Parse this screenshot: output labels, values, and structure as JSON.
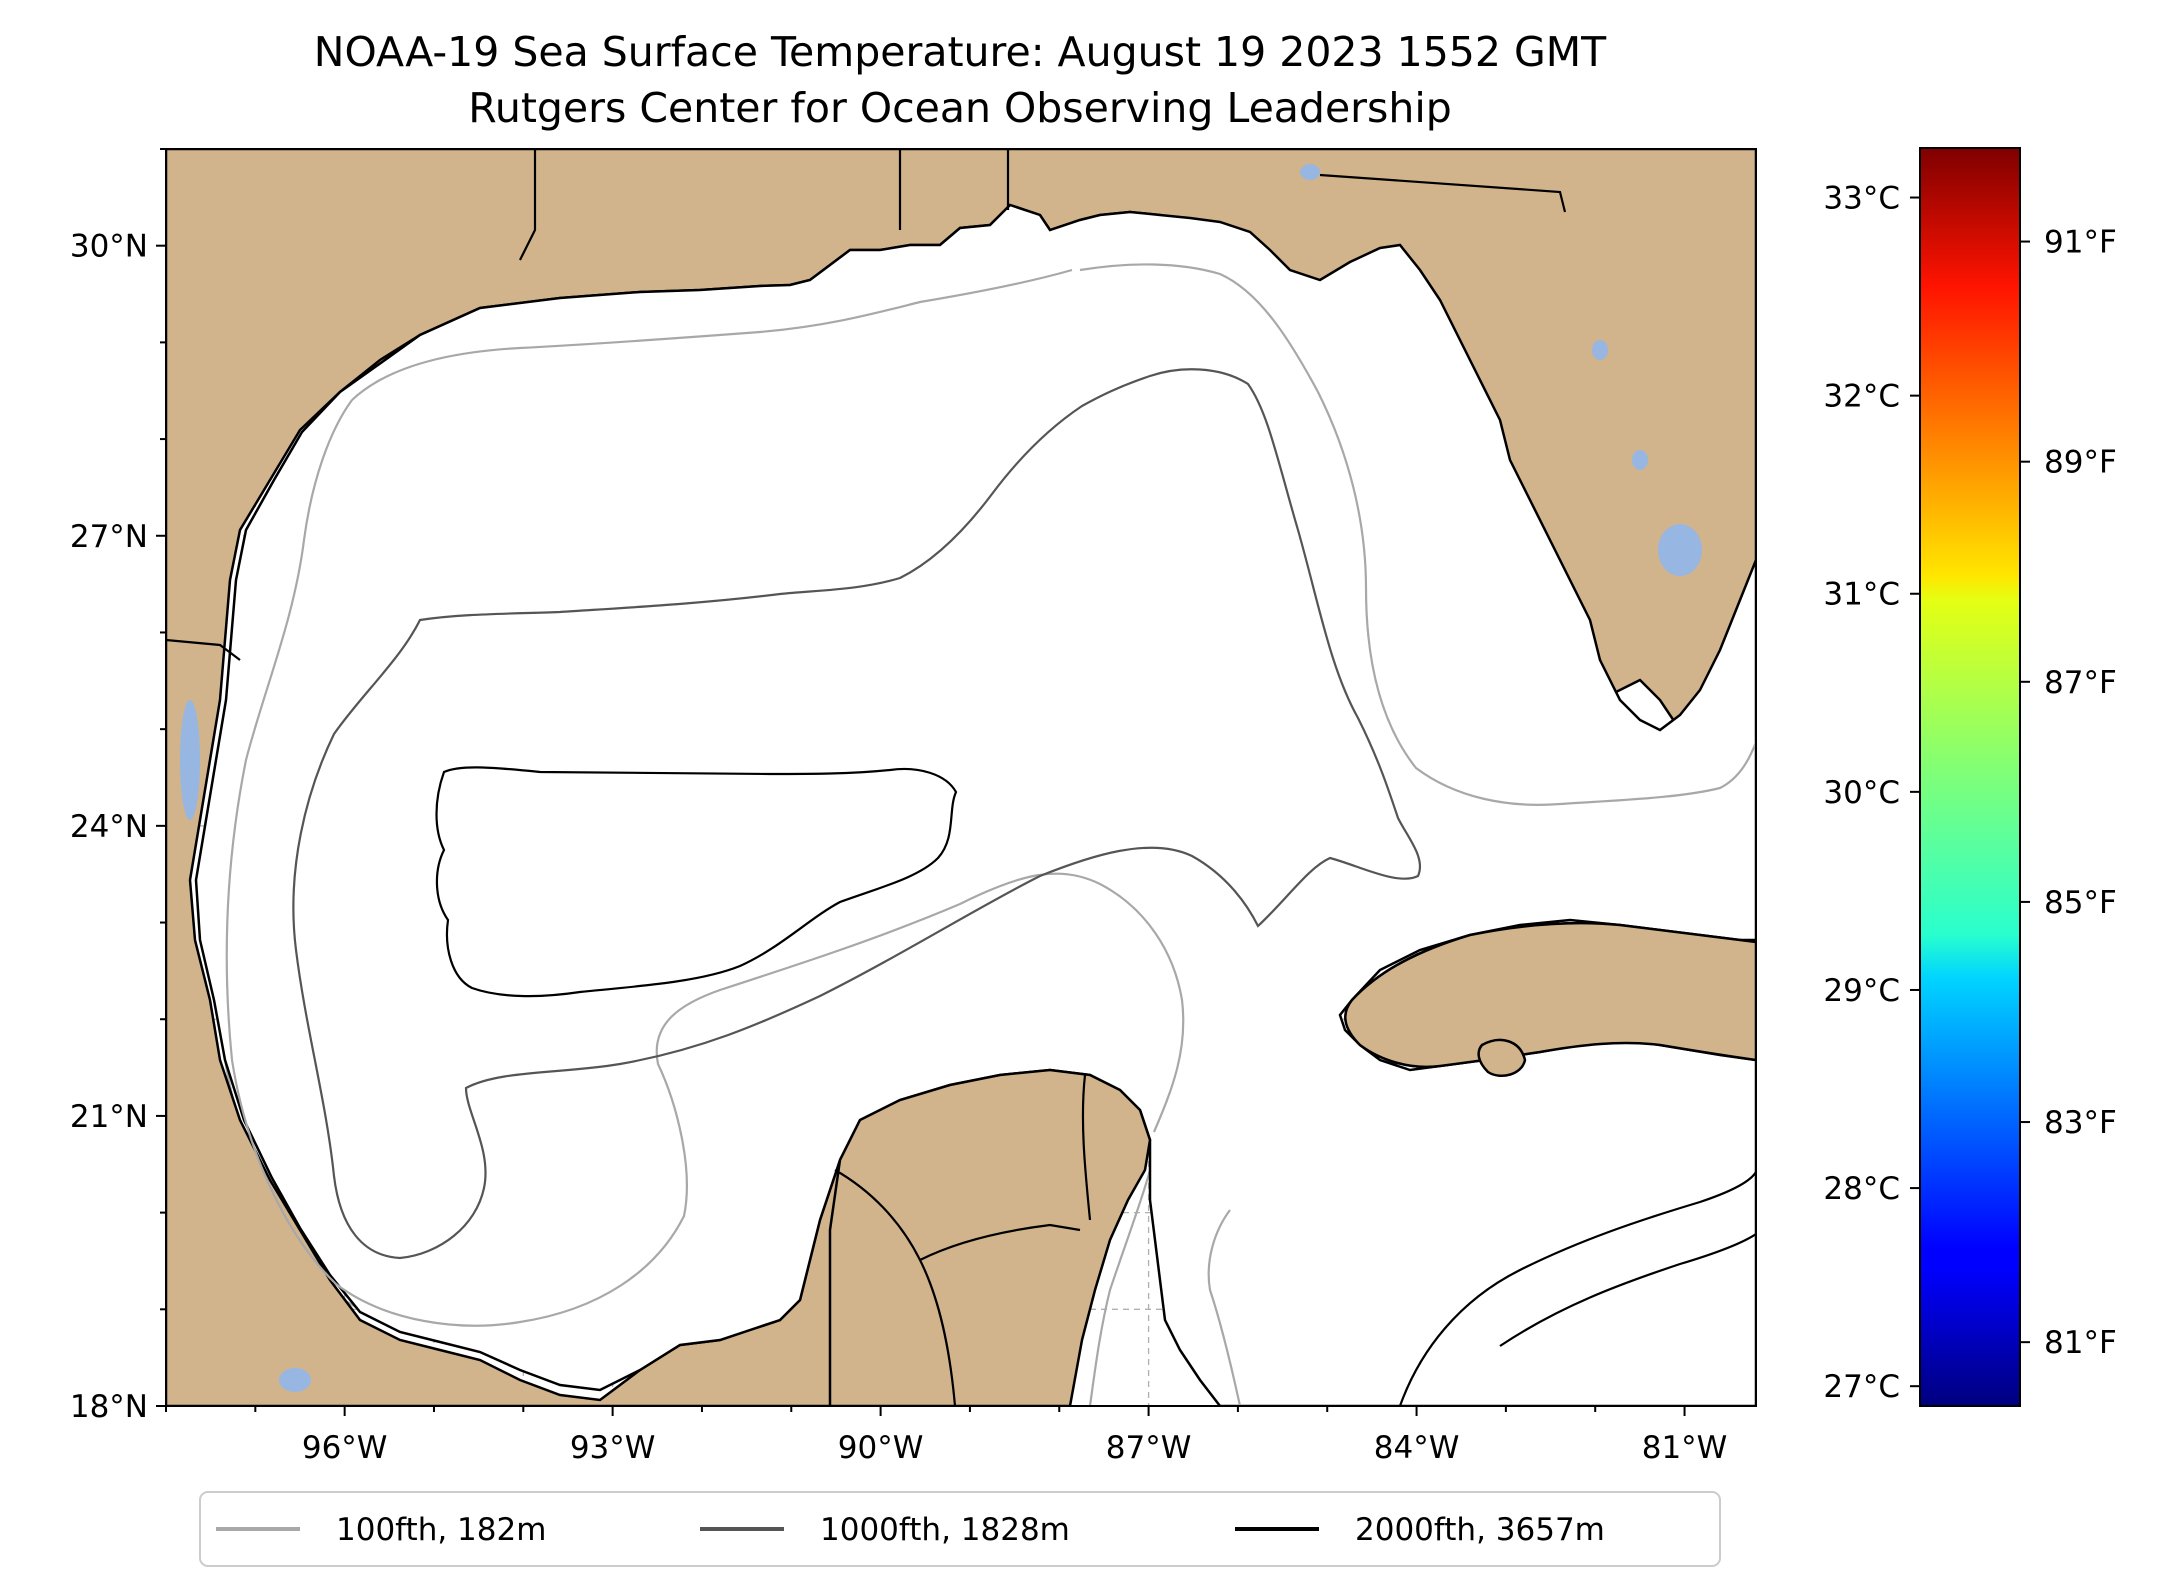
{
  "title": {
    "line1": "NOAA-19 Sea Surface Temperature: August 19 2023 1552 GMT",
    "line2": "Rutgers Center for Ocean Observing Leadership"
  },
  "map": {
    "lon_range": [
      -98,
      -80.2
    ],
    "lat_range": [
      18,
      31
    ],
    "land_color": "#d2b48c",
    "lake_color": "#97b6e1",
    "grid": true,
    "x_ticks": [
      {
        "lon": -96,
        "label": "96°W"
      },
      {
        "lon": -93,
        "label": "93°W"
      },
      {
        "lon": -90,
        "label": "90°W"
      },
      {
        "lon": -87,
        "label": "87°W"
      },
      {
        "lon": -84,
        "label": "84°W"
      },
      {
        "lon": -81,
        "label": "81°W"
      }
    ],
    "y_ticks": [
      {
        "lat": 30,
        "label": "30°N"
      },
      {
        "lat": 27,
        "label": "27°N"
      },
      {
        "lat": 24,
        "label": "24°N"
      },
      {
        "lat": 21,
        "label": "21°N"
      },
      {
        "lat": 18,
        "label": "18°N"
      }
    ]
  },
  "colorbar": {
    "colormap": "jet",
    "celsius_ticks": [
      {
        "value": 33,
        "label": "33°C"
      },
      {
        "value": 32,
        "label": "32°C"
      },
      {
        "value": 31,
        "label": "31°C"
      },
      {
        "value": 30,
        "label": "30°C"
      },
      {
        "value": 29,
        "label": "29°C"
      },
      {
        "value": 28,
        "label": "28°C"
      },
      {
        "value": 27,
        "label": "27°C"
      }
    ],
    "fahrenheit_ticks": [
      {
        "value": 91,
        "label": "91°F"
      },
      {
        "value": 89,
        "label": "89°F"
      },
      {
        "value": 87,
        "label": "87°F"
      },
      {
        "value": 85,
        "label": "85°F"
      },
      {
        "value": 83,
        "label": "83°F"
      },
      {
        "value": 81,
        "label": "81°F"
      }
    ]
  },
  "legend": {
    "location": "bottom-center",
    "items": [
      {
        "label": "100fth, 182m",
        "color": "#a8a8a8"
      },
      {
        "label": "1000fth, 1828m",
        "color": "#555555"
      },
      {
        "label": "2000fth, 3657m",
        "color": "#000000"
      }
    ]
  }
}
